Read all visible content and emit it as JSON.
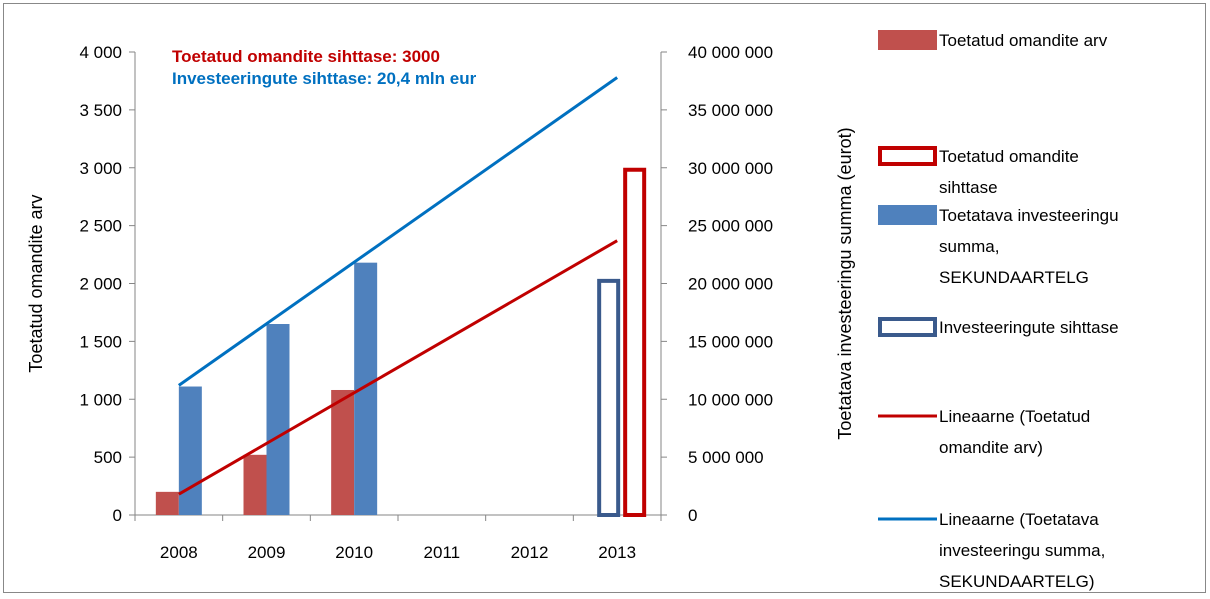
{
  "chart_data": {
    "type": "bar",
    "categories": [
      "2008",
      "2009",
      "2010",
      "2011",
      "2012",
      "2013"
    ],
    "y_left": {
      "label": "Toetatud omandite arv",
      "range": [
        0,
        4000
      ],
      "ticks": [
        "0",
        "500",
        "1 000",
        "1 500",
        "2 000",
        "2 500",
        "3 000",
        "3 500",
        "4 000"
      ]
    },
    "y_right": {
      "label": "Toetatava investeeringu summa (eurot)",
      "range": [
        0,
        40000000
      ],
      "ticks": [
        "0",
        "5 000 000",
        "10 000 000",
        "15 000 000",
        "20 000 000",
        "25 000 000",
        "30 000 000",
        "35 000 000",
        "40 000 000"
      ]
    },
    "series": [
      {
        "name": "Toetatud omandite arv",
        "kind": "bar",
        "axis": "left",
        "color": "#C0504D",
        "values": [
          200,
          520,
          1080,
          null,
          null,
          null
        ]
      },
      {
        "name": "Toetatud omandite sihttase",
        "kind": "bar-outline",
        "axis": "left",
        "color": "#C00000",
        "values": [
          null,
          null,
          null,
          null,
          null,
          3000
        ]
      },
      {
        "name": "Toetatava investeeringu summa, SEKUNDAARTELG",
        "kind": "bar",
        "axis": "right",
        "color": "#4F81BD",
        "values": [
          11100000,
          16500000,
          21800000,
          null,
          null,
          null
        ]
      },
      {
        "name": "Investeeringute sihttase",
        "kind": "bar-outline",
        "axis": "right",
        "color": "#3A5A8C",
        "values": [
          null,
          null,
          null,
          null,
          null,
          20400000
        ]
      },
      {
        "name": "Lineaarne (Toetatud omandite arv)",
        "kind": "trendline",
        "axis": "left",
        "color": "#C00000",
        "points": [
          [
            "2008",
            180
          ],
          [
            "2013",
            2370
          ]
        ]
      },
      {
        "name": "Lineaarne (Toetatava investeeringu summa, SEKUNDAARTELG)",
        "kind": "trendline",
        "axis": "right",
        "color": "#0070C0",
        "points": [
          [
            "2008",
            11200000
          ],
          [
            "2013",
            37800000
          ]
        ]
      }
    ],
    "annotations": [
      {
        "text": "Toetatud omandite sihttase: 3000",
        "color": "#C00000"
      },
      {
        "text": "Investeeringute sihttase: 20,4 mln eur",
        "color": "#0070C0"
      }
    ],
    "legend": {
      "position": "right",
      "entries": [
        {
          "lines": [
            "Toetatud omandite arv"
          ],
          "symbol": "fill",
          "color": "#C0504D"
        },
        {
          "lines": [
            "Toetatud omandite",
            "sihttase"
          ],
          "symbol": "outline",
          "color": "#C00000"
        },
        {
          "lines": [
            "Toetatava investeeringu",
            "summa,",
            "SEKUNDAARTELG"
          ],
          "symbol": "fill",
          "color": "#4F81BD"
        },
        {
          "lines": [
            "Investeeringute sihttase"
          ],
          "symbol": "outline",
          "color": "#3A5A8C"
        },
        {
          "lines": [
            "Lineaarne (Toetatud",
            "omandite arv)"
          ],
          "symbol": "line",
          "color": "#C00000"
        },
        {
          "lines": [
            "Lineaarne (Toetatava",
            "investeeringu summa,",
            "SEKUNDAARTELG)"
          ],
          "symbol": "line",
          "color": "#0070C0"
        }
      ]
    },
    "grid": false
  }
}
